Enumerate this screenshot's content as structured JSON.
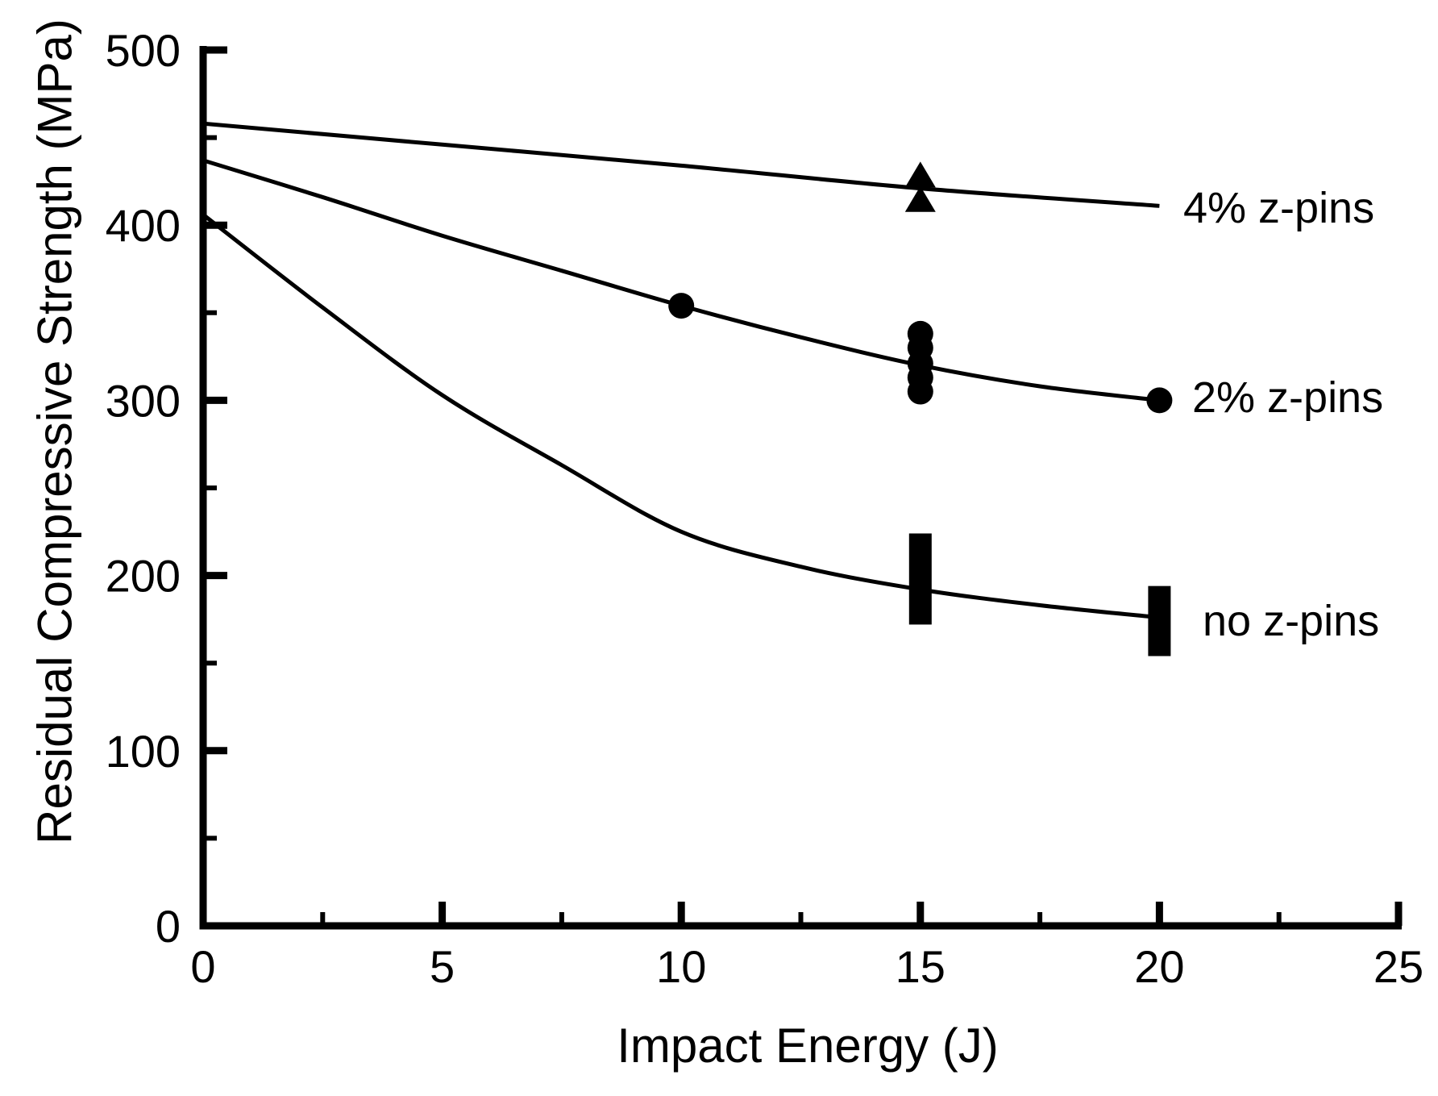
{
  "chart_data": {
    "type": "line",
    "title": "",
    "xlabel": "Impact Energy (J)",
    "ylabel": "Residual Compressive Strength (MPa)",
    "x_axis": {
      "range": [
        0,
        25
      ],
      "major_ticks": [
        0,
        5,
        10,
        15,
        20,
        25
      ],
      "major_tick_labels": [
        "0",
        "5",
        "10",
        "15",
        "20",
        "25"
      ],
      "minor_ticks": [
        2.5,
        7.5,
        12.5,
        17.5,
        22.5
      ]
    },
    "y_axis": {
      "range": [
        0,
        500
      ],
      "major_ticks": [
        0,
        100,
        200,
        300,
        400,
        500
      ],
      "major_tick_labels": [
        "0",
        "100",
        "200",
        "300",
        "400",
        "500"
      ],
      "minor_ticks": [
        50,
        150,
        250,
        350,
        450
      ]
    },
    "grid": "off",
    "legend_position": "right-of-curves-inline",
    "series": [
      {
        "name": "4% z-pins",
        "marker": "triangle",
        "curve": [
          [
            0,
            458
          ],
          [
            5,
            446
          ],
          [
            10,
            434
          ],
          [
            15,
            421
          ],
          [
            20,
            411
          ]
        ],
        "points": [
          [
            15,
            428
          ],
          [
            15,
            414
          ]
        ]
      },
      {
        "name": "2% z-pins",
        "marker": "circle",
        "curve": [
          [
            0,
            437
          ],
          [
            2.5,
            416
          ],
          [
            5,
            394
          ],
          [
            7.5,
            374
          ],
          [
            10,
            354
          ],
          [
            12.5,
            336
          ],
          [
            15,
            320
          ],
          [
            17.5,
            308
          ],
          [
            20,
            300
          ]
        ],
        "points": [
          [
            10,
            354
          ],
          [
            15,
            338
          ],
          [
            15,
            330
          ],
          [
            15,
            321
          ],
          [
            15,
            313
          ],
          [
            15,
            305
          ],
          [
            20,
            300
          ]
        ]
      },
      {
        "name": "no z-pins",
        "marker": "bar",
        "curve": [
          [
            0,
            406
          ],
          [
            2.5,
            353
          ],
          [
            5,
            303
          ],
          [
            7.5,
            263
          ],
          [
            10,
            225
          ],
          [
            12.5,
            205
          ],
          [
            15,
            192
          ],
          [
            17.5,
            183
          ],
          [
            20,
            176
          ]
        ],
        "bars": [
          {
            "x": 15,
            "y_min": 172,
            "y_max": 224
          },
          {
            "x": 20,
            "y_min": 154,
            "y_max": 194
          }
        ]
      }
    ],
    "colors": {
      "ink": "#000000",
      "background": "#ffffff"
    }
  }
}
